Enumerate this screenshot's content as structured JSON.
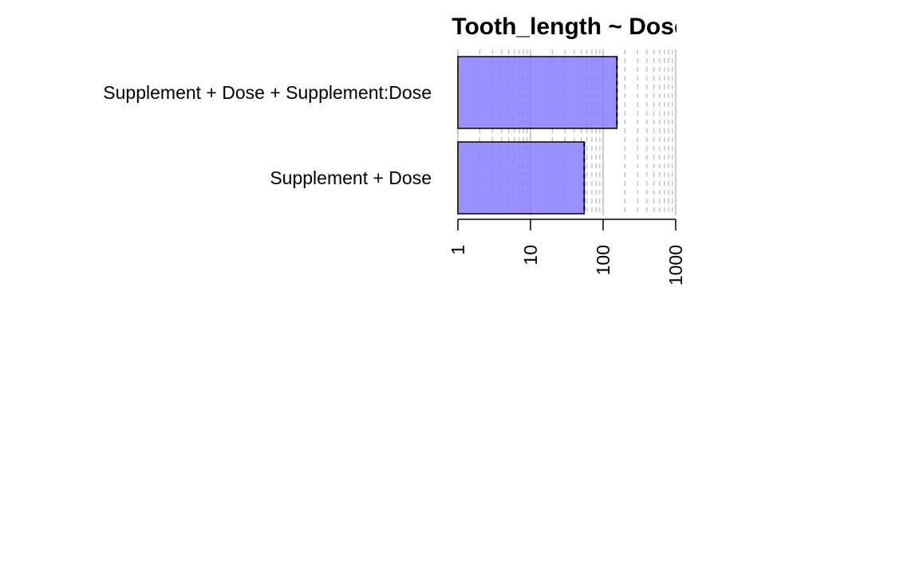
{
  "chart_data": {
    "type": "bar",
    "orientation": "horizontal",
    "title": "Tooth_length ~ Dose",
    "xlabel": "",
    "ylabel": "",
    "categories": [
      "Supplement + Dose + Supplement:Dose",
      "Supplement + Dose"
    ],
    "values": [
      155,
      55
    ],
    "x_scale": "log",
    "xlim": [
      1,
      1000
    ],
    "x_ticks": [
      1,
      10,
      100,
      1000
    ],
    "x_tick_labels": [
      "1",
      "10",
      "100",
      "1000"
    ],
    "grid": true,
    "legend": "none",
    "colors": {
      "bar_fill": "#8a7dff",
      "bar_stroke": "#000000",
      "grid_major": "#bbbbbb",
      "grid_minor": "#bbbbbb"
    }
  }
}
